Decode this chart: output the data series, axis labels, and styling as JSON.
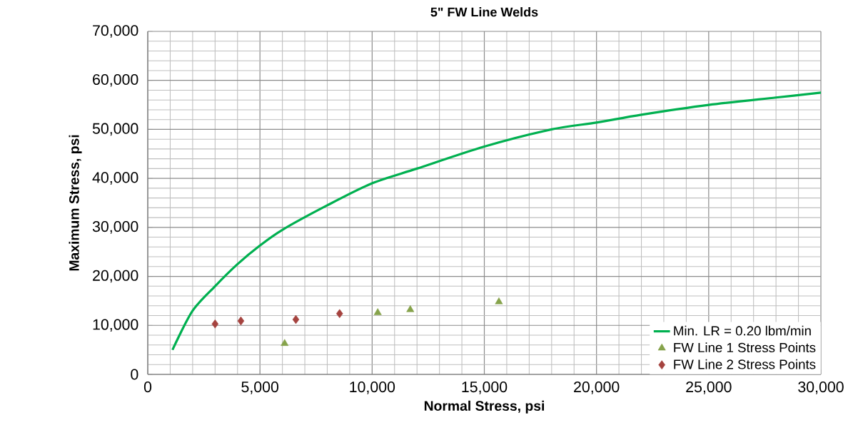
{
  "chart_data": {
    "type": "scatter",
    "title": "5\" FW Line Welds",
    "xlabel": "Normal Stress, psi",
    "ylabel": "Maximum Stress, psi",
    "xlim": [
      0,
      30000
    ],
    "ylim": [
      0,
      70000
    ],
    "xticks": [
      {
        "value": 0,
        "label": "0"
      },
      {
        "value": 5000,
        "label": "5,000"
      },
      {
        "value": 10000,
        "label": "10,000"
      },
      {
        "value": 15000,
        "label": "15,000"
      },
      {
        "value": 20000,
        "label": "20,000"
      },
      {
        "value": 25000,
        "label": "25,000"
      },
      {
        "value": 30000,
        "label": "30,000"
      }
    ],
    "yticks": [
      {
        "value": 0,
        "label": "0"
      },
      {
        "value": 10000,
        "label": "10,000"
      },
      {
        "value": 20000,
        "label": "20,000"
      },
      {
        "value": 30000,
        "label": "30,000"
      },
      {
        "value": 40000,
        "label": "40,000"
      },
      {
        "value": 50000,
        "label": "50,000"
      },
      {
        "value": 60000,
        "label": "60,000"
      },
      {
        "value": 70000,
        "label": "70,000"
      }
    ],
    "grid": true,
    "legend": "bottom right",
    "series": [
      {
        "name": "Min. LR = 0.20 lbm/min",
        "type": "line",
        "color": "#00b050",
        "marker": "none",
        "x": [
          1100,
          2000,
          3000,
          4000,
          5000,
          6000,
          8000,
          10000,
          12000,
          15000,
          18000,
          20000,
          22000,
          25000,
          28000,
          30000
        ],
        "values": [
          5000,
          13000,
          18000,
          22500,
          26300,
          29500,
          34500,
          39000,
          42000,
          46500,
          50000,
          51400,
          53000,
          55000,
          56500,
          57500
        ]
      },
      {
        "name": "FW Line 1 Stress Points",
        "color": "#86a34b",
        "marker": "triangle",
        "x": [
          6100,
          10250,
          11700,
          15650
        ],
        "values": [
          6300,
          12600,
          13200,
          14800
        ]
      },
      {
        "name": "FW Line 2 Stress Points",
        "color": "#a5433f",
        "marker": "diamond",
        "x": [
          3000,
          4150,
          6600,
          8550
        ],
        "values": [
          10300,
          10900,
          11200,
          12400
        ]
      }
    ]
  }
}
